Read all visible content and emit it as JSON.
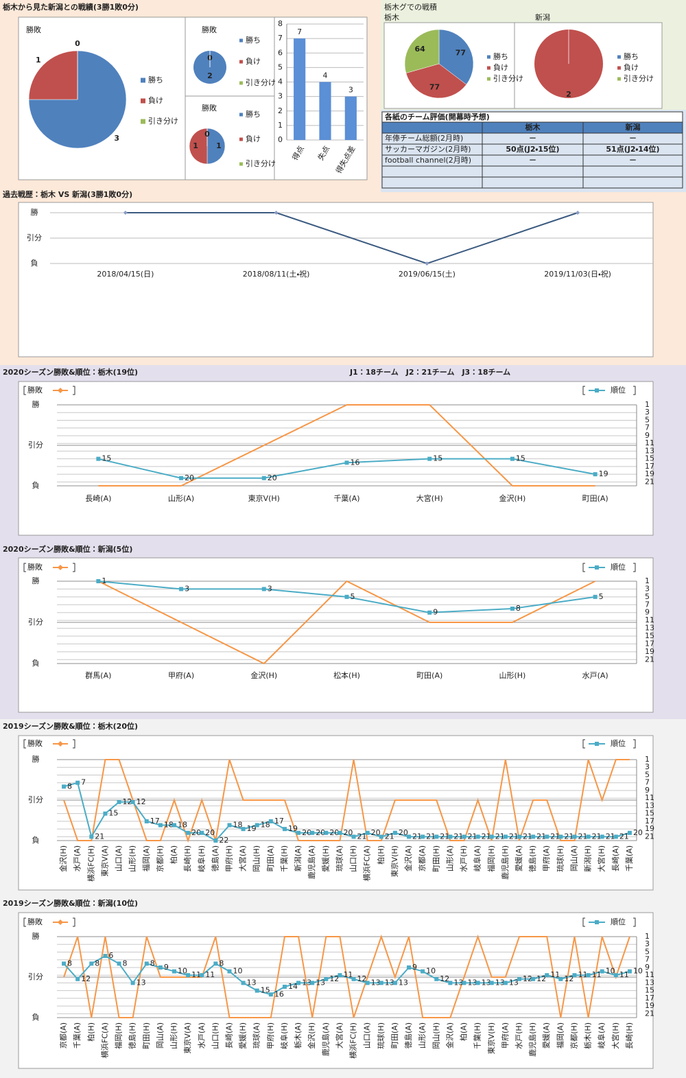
{
  "chart_data": [
    {
      "type": "pie",
      "title": "勝敗",
      "categories": [
        "勝ち",
        "負け",
        "引き分け"
      ],
      "values": [
        3,
        1,
        0
      ],
      "colors": [
        "#4f81bd",
        "#c0504d",
        "#9bbb59"
      ]
    },
    {
      "type": "pie",
      "title": "勝敗",
      "categories": [
        "勝ち",
        "負け",
        "引き分け"
      ],
      "values": [
        2,
        0,
        0
      ],
      "value_labels": [
        "2",
        "0",
        null
      ],
      "colors": [
        "#4f81bd",
        "#c0504d",
        "#9bbb59"
      ]
    },
    {
      "type": "pie",
      "title": "勝敗",
      "categories": [
        "勝ち",
        "負け",
        "引き分け"
      ],
      "values": [
        1,
        1,
        0
      ],
      "colors": [
        "#4f81bd",
        "#c0504d",
        "#9bbb59"
      ]
    },
    {
      "type": "bar",
      "categories": [
        "得点",
        "失点",
        "得失点差"
      ],
      "values": [
        7,
        4,
        3
      ],
      "color": "#5b8fd6",
      "ylim": [
        0,
        8
      ],
      "yticks": [
        0,
        1,
        2,
        3,
        4,
        5,
        6,
        7,
        8
      ],
      "grid": true
    },
    {
      "type": "pie",
      "title": "栃木",
      "categories": [
        "勝ち",
        "負け",
        "引き分け"
      ],
      "values": [
        77,
        77,
        64
      ],
      "colors": [
        "#4f81bd",
        "#c0504d",
        "#9bbb59"
      ]
    },
    {
      "type": "pie",
      "title": "新潟",
      "categories": [
        "勝ち",
        "負け",
        "引き分け"
      ],
      "values": [
        0,
        2,
        0
      ],
      "value_labels": [
        "0",
        "2",
        null
      ],
      "colors": [
        "#4f81bd",
        "#c0504d",
        "#9bbb59"
      ]
    },
    {
      "type": "line",
      "title": "過去戦歴：栃木 VS 新潟(3勝1敗0分)",
      "categories": [
        "2018/04/15(日)",
        "2018/08/11(土・祝)",
        "2019/06/15(土)",
        "2019/11/03(日・祝)"
      ],
      "values": [
        2,
        2,
        0,
        2
      ],
      "color": "#3b5a80",
      "ylim": [
        0,
        2
      ],
      "yticks": [
        {
          "value": 0,
          "label": "負"
        },
        {
          "value": 1,
          "label": "引分"
        },
        {
          "value": 2,
          "label": "勝"
        }
      ],
      "grid": true
    },
    {
      "type": "combo",
      "title": "2020シーズン勝敗&順位：栃木(19位)",
      "note": "J1：18チーム　J2：21チーム　J3：18チーム",
      "categories": [
        "長崎(A)",
        "山形(A)",
        "東京V(H)",
        "千葉(A)",
        "大宮(H)",
        "金沢(H)",
        "町田(A)"
      ],
      "series": [
        {
          "name": "勝敗",
          "color": "#f79646",
          "values": [
            0,
            0,
            1,
            2,
            2,
            0,
            0
          ]
        },
        {
          "name": "順位",
          "color": "#4bacc6",
          "axis": "y2",
          "values": [
            15,
            20,
            20,
            16,
            15,
            15,
            19
          ]
        }
      ],
      "ylim": [
        0,
        2
      ],
      "yticks": [
        {
          "value": 0,
          "label": "負"
        },
        {
          "value": 1,
          "label": "引分"
        },
        {
          "value": 2,
          "label": "勝"
        }
      ],
      "y2lim": [
        22,
        1
      ],
      "y2ticks": [
        1,
        3,
        5,
        7,
        9,
        11,
        13,
        15,
        17,
        19,
        21
      ],
      "grid": true
    },
    {
      "type": "combo",
      "title": "2020シーズン勝敗&順位：新潟(5位)",
      "categories": [
        "群馬(A)",
        "甲府(A)",
        "金沢(H)",
        "松本(H)",
        "町田(A)",
        "山形(H)",
        "水戸(A)"
      ],
      "series": [
        {
          "name": "勝敗",
          "color": "#f79646",
          "values": [
            2,
            1,
            0,
            2,
            1,
            1,
            2
          ]
        },
        {
          "name": "順位",
          "color": "#4bacc6",
          "axis": "y2",
          "values": [
            1,
            3,
            3,
            5,
            9,
            8,
            5
          ]
        }
      ],
      "ylim": [
        0,
        2
      ],
      "yticks": [
        {
          "value": 0,
          "label": "負"
        },
        {
          "value": 1,
          "label": "引分"
        },
        {
          "value": 2,
          "label": "勝"
        }
      ],
      "y2lim": [
        22,
        1
      ],
      "y2ticks": [
        1,
        3,
        5,
        7,
        9,
        11,
        13,
        15,
        17,
        19,
        21
      ],
      "grid": true
    },
    {
      "type": "combo",
      "title": "2019シーズン勝敗&順位：栃木(20位)",
      "categories": [
        "金沢(H)",
        "水戸(A)",
        "横浜FC(H)",
        "東京V(A)",
        "山口(A)",
        "山形(H)",
        "福岡(A)",
        "京都(H)",
        "柏(A)",
        "長崎(H)",
        "岐阜(H)",
        "徳島(A)",
        "甲府(H)",
        "大宮(A)",
        "岡山(H)",
        "町田(A)",
        "千葉(H)",
        "新潟(A)",
        "鹿児島(A)",
        "愛媛(H)",
        "琉球(A)",
        "山口(H)",
        "横浜FC(A)",
        "柏(H)",
        "東京V(H)",
        "金沢(A)",
        "京都(A)",
        "町田(H)",
        "山形(A)",
        "水戸(H)",
        "岐阜(A)",
        "福岡(H)",
        "鹿児島(H)",
        "愛媛(A)",
        "徳島(H)",
        "甲府(A)",
        "琉球(H)",
        "岡山(A)",
        "新潟(H)",
        "大宮(H)",
        "長崎(A)",
        "千葉(A)"
      ],
      "series": [
        {
          "name": "勝敗",
          "color": "#f79646",
          "values": [
            1,
            0,
            0,
            2,
            2,
            1,
            0,
            0,
            1,
            0,
            1,
            0,
            2,
            1,
            1,
            1,
            1,
            0,
            0,
            0,
            0,
            2,
            0,
            0,
            1,
            1,
            1,
            1,
            0,
            0,
            1,
            0,
            2,
            0,
            1,
            1,
            0,
            0,
            2,
            1,
            2,
            2
          ]
        },
        {
          "name": "順位",
          "color": "#4bacc6",
          "axis": "y2",
          "values": [
            8,
            7,
            21,
            15,
            12,
            12,
            17,
            18,
            18,
            20,
            20,
            22,
            18,
            19,
            18,
            17,
            19,
            20,
            20,
            20,
            20,
            21,
            20,
            21,
            20,
            21,
            21,
            21,
            21,
            21,
            21,
            21,
            21,
            21,
            21,
            21,
            21,
            21,
            21,
            21,
            21,
            20
          ]
        }
      ],
      "ylim": [
        0,
        2
      ],
      "yticks": [
        {
          "value": 0,
          "label": "負"
        },
        {
          "value": 1,
          "label": "引分"
        },
        {
          "value": 2,
          "label": "勝"
        }
      ],
      "y2lim": [
        22,
        1
      ],
      "y2ticks": [
        1,
        3,
        5,
        7,
        9,
        11,
        13,
        15,
        17,
        19,
        21
      ],
      "grid": true
    },
    {
      "type": "combo",
      "title": "2019シーズン勝敗&順位：新潟(10位)",
      "categories": [
        "京都(A)",
        "千葉(A)",
        "柏(H)",
        "横浜FC(A)",
        "福岡(H)",
        "徳島(H)",
        "町田(H)",
        "岡山(A)",
        "山形(H)",
        "東京V(A)",
        "水戸(A)",
        "山口(H)",
        "長崎(A)",
        "愛媛(H)",
        "琉球(A)",
        "甲府(H)",
        "岐阜(H)",
        "栃木(A)",
        "金沢(H)",
        "鹿児島(A)",
        "大宮(A)",
        "横浜FC(H)",
        "山口(A)",
        "琉球(H)",
        "町田(A)",
        "徳島(A)",
        "山形(A)",
        "岡山(H)",
        "金沢(A)",
        "柏(A)",
        "千葉(H)",
        "東京V(H)",
        "甲府(A)",
        "水戸(H)",
        "鹿児島(H)",
        "愛媛(A)",
        "福岡(A)",
        "京都(H)",
        "栃木(H)",
        "岐阜(A)",
        "大宮(H)",
        "長崎(H)"
      ],
      "series": [
        {
          "name": "勝敗",
          "color": "#f79646",
          "values": [
            1,
            2,
            0,
            2,
            0,
            0,
            2,
            1,
            1,
            1,
            1,
            2,
            0,
            0,
            0,
            0,
            2,
            2,
            0,
            2,
            2,
            0,
            1,
            2,
            1,
            2,
            0,
            0,
            0,
            1,
            2,
            1,
            1,
            2,
            2,
            2,
            0,
            2,
            0,
            2,
            1,
            2
          ]
        },
        {
          "name": "順位",
          "color": "#4bacc6",
          "axis": "y2",
          "values": [
            8,
            12,
            8,
            6,
            8,
            13,
            8,
            9,
            10,
            11,
            11,
            8,
            10,
            13,
            15,
            16,
            14,
            13,
            13,
            12,
            11,
            12,
            13,
            13,
            13,
            9,
            10,
            12,
            13,
            13,
            13,
            13,
            13,
            12,
            12,
            11,
            12,
            11,
            11,
            10,
            11,
            10
          ]
        }
      ],
      "ylim": [
        0,
        2
      ],
      "yticks": [
        {
          "value": 0,
          "label": "負"
        },
        {
          "value": 1,
          "label": "引分"
        },
        {
          "value": 2,
          "label": "勝"
        }
      ],
      "y2lim": [
        22,
        1
      ],
      "y2ticks": [
        1,
        3,
        5,
        7,
        9,
        11,
        13,
        15,
        17,
        19,
        21
      ],
      "grid": true
    }
  ],
  "header": {
    "title": "栃木から見た新潟との戦績(3勝1敗0分)",
    "league_title": "栃木グでの戦積"
  },
  "table": {
    "title": "各紙のチーム評価(開幕時予想)",
    "header": [
      "栃木",
      "新潟"
    ],
    "rows": [
      [
        "年俸チーム総額(2月時)",
        "－",
        "－"
      ],
      [
        "サッカーマガジン(2月時)",
        "50点(J2・15位)",
        "51点(J2・14位)"
      ],
      [
        "football channel(2月時)",
        "－",
        "－"
      ]
    ]
  }
}
